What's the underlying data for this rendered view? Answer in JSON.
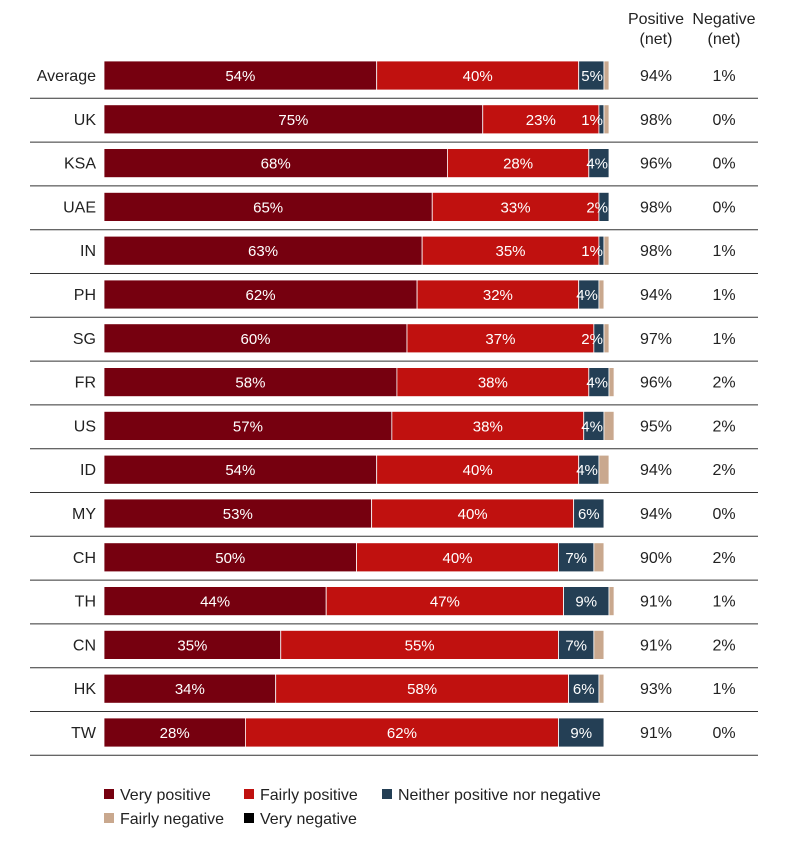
{
  "chart_data": {
    "type": "bar",
    "orientation": "horizontal",
    "stacked": true,
    "title": "",
    "xlabel": "",
    "ylabel": "",
    "xlim": [
      0,
      100
    ],
    "categories": [
      "Average",
      "UK",
      "KSA",
      "UAE",
      "IN",
      "PH",
      "SG",
      "FR",
      "US",
      "ID",
      "MY",
      "CH",
      "TH",
      "CN",
      "HK",
      "TW"
    ],
    "series": [
      {
        "name": "Very positive",
        "color": "#76000f",
        "values": [
          54,
          75,
          68,
          65,
          63,
          62,
          60,
          58,
          57,
          54,
          53,
          50,
          44,
          35,
          34,
          28
        ]
      },
      {
        "name": "Fairly positive",
        "color": "#c0110f",
        "values": [
          40,
          23,
          28,
          33,
          35,
          32,
          37,
          38,
          38,
          40,
          40,
          40,
          47,
          55,
          58,
          62
        ]
      },
      {
        "name": "Neither positive nor negative",
        "color": "#243f55",
        "values": [
          5,
          1,
          4,
          2,
          1,
          4,
          2,
          4,
          4,
          4,
          6,
          7,
          9,
          7,
          6,
          9
        ]
      },
      {
        "name": "Fairly negative",
        "color": "#c9a88e",
        "values": [
          1,
          1,
          0,
          0,
          1,
          1,
          1,
          1,
          2,
          2,
          0,
          2,
          1,
          2,
          1,
          0
        ]
      },
      {
        "name": "Very negative",
        "color": "#000000",
        "values": [
          0,
          0,
          0,
          0,
          0,
          0,
          0,
          0,
          0,
          0,
          0,
          0,
          0,
          0,
          0,
          0
        ]
      }
    ],
    "label_text": [
      [
        "54%",
        "40%",
        "5%"
      ],
      [
        "75%",
        "23%",
        "1%"
      ],
      [
        "68%",
        "28%",
        "4%"
      ],
      [
        "65%",
        "33%",
        "2%"
      ],
      [
        "63%",
        "35%",
        "1%"
      ],
      [
        "62%",
        "32%",
        "4%"
      ],
      [
        "60%",
        "37%",
        "2%"
      ],
      [
        "58%",
        "38%",
        "4%"
      ],
      [
        "57%",
        "38%",
        "4%"
      ],
      [
        "54%",
        "40%",
        "4%"
      ],
      [
        "53%",
        "40%",
        "6%"
      ],
      [
        "50%",
        "40%",
        "7%"
      ],
      [
        "44%",
        "47%",
        "9%"
      ],
      [
        "35%",
        "55%",
        "7%"
      ],
      [
        "34%",
        "58%",
        "6%"
      ],
      [
        "28%",
        "62%",
        "9%"
      ]
    ],
    "summary_columns": [
      {
        "header": [
          "Positive",
          "(net)"
        ],
        "values": [
          "94%",
          "98%",
          "96%",
          "98%",
          "98%",
          "94%",
          "97%",
          "96%",
          "95%",
          "94%",
          "94%",
          "90%",
          "91%",
          "91%",
          "93%",
          "91%"
        ]
      },
      {
        "header": [
          "Negative",
          "(net)"
        ],
        "values": [
          "1%",
          "0%",
          "0%",
          "0%",
          "1%",
          "1%",
          "1%",
          "2%",
          "2%",
          "2%",
          "0%",
          "2%",
          "1%",
          "2%",
          "1%",
          "0%"
        ]
      }
    ],
    "legend": {
      "position": "bottom-left",
      "items": [
        "Very positive",
        "Fairly positive",
        "Neither positive nor negative",
        "Fairly negative",
        "Very negative"
      ]
    }
  }
}
